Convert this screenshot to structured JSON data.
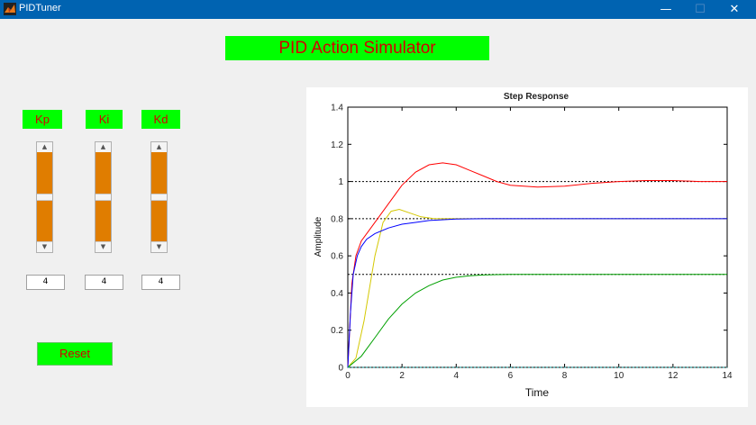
{
  "window": {
    "title": "PIDTuner",
    "minimize": "—",
    "maximize": "☐",
    "close": "✕"
  },
  "header": {
    "title": "PID Action Simulator"
  },
  "gains": [
    {
      "label": "Kp",
      "value": "4",
      "level": 0.5
    },
    {
      "label": "Ki",
      "value": "4",
      "level": 0.5
    },
    {
      "label": "Kd",
      "value": "4",
      "level": 0.5
    }
  ],
  "reset_label": "Reset",
  "colors": {
    "accent": "#00ff00",
    "label_text": "#d40000",
    "slider_fill": "#e07d00"
  },
  "chart_data": {
    "type": "line",
    "title": "Step Response",
    "xlabel": "Time",
    "ylabel": "Amplitude",
    "xlim": [
      0,
      14
    ],
    "ylim": [
      0,
      1.4
    ],
    "xticks": [
      0,
      2,
      4,
      6,
      8,
      10,
      12,
      14
    ],
    "yticks": [
      0,
      0.2,
      0.4,
      0.6,
      0.8,
      1,
      1.2,
      1.4
    ],
    "grid": false,
    "reference_lines": [
      1.0,
      0.8,
      0.5,
      0.0
    ],
    "series": [
      {
        "color": "#ff0000",
        "x": [
          0,
          0.15,
          0.3,
          0.5,
          0.8,
          1.2,
          1.6,
          2.0,
          2.5,
          3.0,
          3.5,
          4.0,
          4.5,
          5.0,
          5.5,
          6.0,
          7.0,
          8.0,
          9.0,
          10.0,
          11.0,
          12.0,
          13.0,
          14.0
        ],
        "y": [
          0,
          0.45,
          0.6,
          0.68,
          0.74,
          0.82,
          0.9,
          0.98,
          1.05,
          1.09,
          1.1,
          1.09,
          1.06,
          1.03,
          1.0,
          0.98,
          0.97,
          0.975,
          0.99,
          1.0,
          1.005,
          1.005,
          1.0,
          1.0
        ]
      },
      {
        "color": "#d4c800",
        "x": [
          0,
          0.3,
          0.6,
          1.0,
          1.3,
          1.6,
          1.9,
          2.3,
          2.7,
          3.2,
          3.6,
          4.0,
          5.0,
          6.0,
          8.0,
          10.0,
          14.0
        ],
        "y": [
          0,
          0.05,
          0.25,
          0.6,
          0.78,
          0.84,
          0.85,
          0.83,
          0.81,
          0.8,
          0.8,
          0.8,
          0.8,
          0.8,
          0.8,
          0.8,
          0.8
        ]
      },
      {
        "color": "#0000ff",
        "x": [
          0,
          0.1,
          0.2,
          0.35,
          0.5,
          0.7,
          1.0,
          1.5,
          2.0,
          2.5,
          3.0,
          4.0,
          5.0,
          6.0,
          8.0,
          10.0,
          14.0
        ],
        "y": [
          0,
          0.3,
          0.5,
          0.6,
          0.65,
          0.69,
          0.72,
          0.75,
          0.77,
          0.78,
          0.79,
          0.798,
          0.8,
          0.8,
          0.8,
          0.8,
          0.8
        ]
      },
      {
        "color": "#00a000",
        "x": [
          0,
          0.5,
          1.0,
          1.5,
          2.0,
          2.5,
          3.0,
          3.5,
          4.0,
          4.5,
          5.0,
          5.5,
          6.0,
          8.0,
          10.0,
          14.0
        ],
        "y": [
          0,
          0.06,
          0.16,
          0.26,
          0.34,
          0.4,
          0.44,
          0.47,
          0.485,
          0.493,
          0.497,
          0.499,
          0.5,
          0.5,
          0.5,
          0.5
        ]
      },
      {
        "color": "#008b8b",
        "dashed": true,
        "x": [
          0,
          14
        ],
        "y": [
          0,
          0
        ]
      }
    ]
  }
}
